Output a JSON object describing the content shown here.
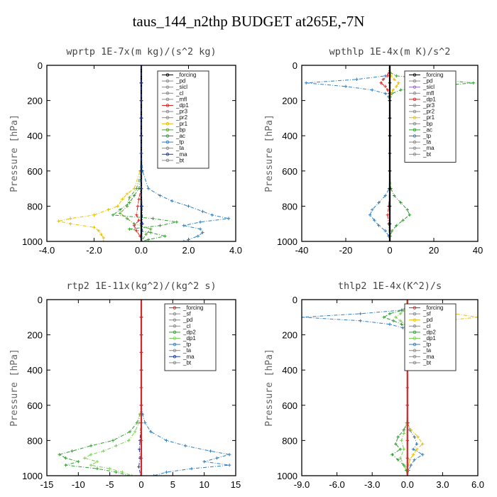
{
  "title": "taus_144_n2thp  BUDGET at265E,-7N",
  "chart_data": [
    {
      "type": "line",
      "title": "wprtp   1E-7x(m kg)/(s^2 kg)",
      "ylabel": "Pressure [hPa]",
      "xlim": [
        -4.0,
        4.0
      ],
      "ylim": [
        0,
        1000
      ],
      "y_inverted": true,
      "xticks": [
        "-4.0",
        "-2.0",
        "0.0",
        "2.0",
        "4.0"
      ],
      "yticks": [
        "0",
        "200",
        "400",
        "600",
        "800",
        "1000"
      ],
      "legend": [
        "_forcing",
        "_pd",
        "_sicl",
        "_cl",
        "_mfl",
        "_dp1",
        "_pr3",
        "_pr2",
        "_pr1",
        "_bp",
        "_ac",
        "_tp",
        "_ta",
        "_ma",
        "_bt"
      ],
      "series": [
        {
          "name": "_tp",
          "color": "#2f7fc0",
          "y": [
            0,
            100,
            200,
            300,
            400,
            500,
            600,
            700,
            740,
            770,
            800,
            830,
            850,
            870,
            890,
            910,
            930,
            950,
            970,
            990,
            1000
          ],
          "x": [
            0,
            0,
            0,
            0,
            0,
            0,
            0.05,
            0.3,
            0.8,
            1.3,
            2.0,
            2.6,
            3.0,
            3.7,
            2.5,
            1.8,
            2.5,
            2.6,
            2.4,
            2.0,
            1.8
          ]
        },
        {
          "name": "_pr1",
          "color": "#e8c000",
          "y": [
            0,
            100,
            200,
            300,
            400,
            500,
            600,
            700,
            730,
            760,
            800,
            820,
            850,
            870,
            885,
            900,
            920,
            940,
            960,
            980,
            1000
          ],
          "x": [
            0,
            0,
            0,
            0,
            0,
            0,
            -0.05,
            -0.3,
            -0.6,
            -0.8,
            -1.0,
            -1.4,
            -2.0,
            -3.0,
            -3.5,
            -3.0,
            -2.0,
            -1.8,
            -1.7,
            -1.6,
            -1.6
          ]
        },
        {
          "name": "_ac",
          "color": "#2ca02c",
          "y": [
            0,
            100,
            200,
            300,
            400,
            500,
            600,
            700,
            740,
            780,
            820,
            850,
            870,
            890,
            910,
            930,
            950,
            970,
            990,
            1000
          ],
          "x": [
            0,
            0,
            0,
            0,
            0,
            0,
            0,
            -0.1,
            -0.3,
            -0.5,
            -0.9,
            -1.2,
            0.5,
            1.5,
            0.8,
            -0.5,
            0.4,
            1.0,
            0.3,
            0.0
          ]
        },
        {
          "name": "_bp",
          "color": "#5aa02c",
          "y": [
            0,
            100,
            200,
            300,
            400,
            500,
            600,
            700,
            750,
            800,
            840,
            870,
            900,
            930,
            960,
            1000
          ],
          "x": [
            0,
            0,
            0,
            0,
            0,
            0,
            0,
            -0.2,
            -0.5,
            -0.6,
            -0.9,
            -0.6,
            -0.3,
            0.4,
            0.2,
            0.0
          ]
        },
        {
          "name": "_dp1",
          "color": "#d62728",
          "y": [
            0,
            100,
            200,
            300,
            400,
            500,
            600,
            700,
            760,
            800,
            850,
            880,
            910,
            940,
            970,
            1000
          ],
          "x": [
            0,
            0,
            0,
            0,
            0,
            0,
            0,
            -0.02,
            -0.1,
            -0.15,
            -0.2,
            -0.1,
            -0.3,
            -0.2,
            -0.05,
            0.0
          ]
        },
        {
          "name": "_forcing",
          "color": "#000000",
          "y": [
            0,
            100,
            200,
            300,
            400,
            500,
            600,
            700,
            800,
            900,
            1000
          ],
          "x": [
            0,
            0,
            0,
            0,
            0,
            0,
            0,
            0,
            0,
            0,
            0
          ]
        },
        {
          "name": "_ma",
          "color": "#1f3fa0",
          "y": [
            0,
            100,
            200,
            300,
            400,
            500,
            600,
            700,
            800,
            900,
            1000
          ],
          "x": [
            0,
            0,
            0,
            0,
            0,
            0,
            0,
            0,
            0.03,
            0.05,
            0.02
          ]
        }
      ]
    },
    {
      "type": "line",
      "title": "wpthlp   1E-4x(m K)/s^2",
      "ylabel": "Pressure [hPa]",
      "xlim": [
        -40,
        40
      ],
      "ylim": [
        0,
        1000
      ],
      "y_inverted": true,
      "xticks": [
        "-40",
        "-20",
        "0",
        "20",
        "40"
      ],
      "yticks": [
        "0",
        "200",
        "400",
        "600",
        "800",
        "1000"
      ],
      "legend": [
        "_forcing",
        "_pd",
        "_sicl",
        "_mfl",
        "_dp1",
        "_pr3",
        "_pr2",
        "_pr1",
        "_bp",
        "_ac",
        "_tp",
        "_ta",
        "_ma",
        "_bt"
      ],
      "series": [
        {
          "name": "_tp",
          "color": "#2f7fc0",
          "y": [
            0,
            40,
            60,
            80,
            100,
            120,
            140,
            160,
            180,
            200,
            300,
            400,
            600,
            700,
            740,
            780,
            820,
            850,
            880,
            910,
            940,
            970,
            1000
          ],
          "x": [
            0,
            0,
            -2,
            -15,
            -38,
            -20,
            -8,
            -2,
            -0.5,
            0,
            0,
            0,
            0,
            -0.3,
            -2,
            -5,
            -8,
            -9,
            -7,
            -5,
            -2,
            -0.5,
            0
          ]
        },
        {
          "name": "_ac",
          "color": "#2ca02c",
          "y": [
            0,
            40,
            60,
            80,
            100,
            120,
            140,
            160,
            180,
            200,
            300,
            400,
            600,
            700,
            740,
            780,
            820,
            850,
            880,
            910,
            940,
            970,
            1000
          ],
          "x": [
            0,
            0,
            3,
            20,
            38,
            18,
            5,
            1,
            0.2,
            0,
            0,
            0,
            0,
            0.5,
            2,
            5,
            8,
            9,
            6,
            3,
            1,
            0.2,
            0
          ]
        },
        {
          "name": "_pr1",
          "color": "#e8c000",
          "y": [
            0,
            60,
            80,
            100,
            120,
            140,
            160,
            200,
            1000
          ],
          "x": [
            0,
            0.5,
            2,
            4,
            3,
            1.5,
            0.5,
            0,
            0
          ]
        },
        {
          "name": "_dp1",
          "color": "#d62728",
          "y": [
            0,
            60,
            80,
            100,
            120,
            140,
            160,
            200,
            700,
            800,
            850,
            900,
            1000
          ],
          "x": [
            0,
            -1,
            -3,
            -4,
            -2,
            -1,
            -0.3,
            0,
            0,
            -0.5,
            -1,
            -0.5,
            0
          ]
        },
        {
          "name": "_sicl",
          "color": "#9467bd",
          "y": [
            0,
            100,
            200,
            300,
            400,
            500,
            600,
            700,
            800,
            900,
            1000
          ],
          "x": [
            0,
            0,
            0,
            0,
            0,
            0,
            0,
            0,
            0,
            0,
            0
          ]
        },
        {
          "name": "_forcing",
          "color": "#000000",
          "y": [
            0,
            100,
            200,
            300,
            400,
            500,
            600,
            700,
            800,
            900,
            1000
          ],
          "x": [
            0,
            0,
            0,
            0,
            0,
            0,
            0,
            0,
            0,
            0,
            0
          ]
        }
      ]
    },
    {
      "type": "line",
      "title": "rtp2   1E-11x(kg^2)/(kg^2 s)",
      "ylabel": "Pressure [hPa]",
      "xlim": [
        -15,
        15
      ],
      "ylim": [
        0,
        1000
      ],
      "y_inverted": true,
      "xticks": [
        "-15",
        "-10",
        "-5",
        "0",
        "5",
        "10",
        "15"
      ],
      "yticks": [
        "0",
        "200",
        "400",
        "600",
        "800",
        "1000"
      ],
      "legend": [
        "_forcing",
        "_sf",
        "_pd",
        "_cl",
        "_dp2",
        "_dp1",
        "_tp",
        "_ta",
        "_ma",
        "_bt"
      ],
      "series": [
        {
          "name": "_tp",
          "color": "#2f7fc0",
          "y": [
            0,
            100,
            200,
            300,
            400,
            500,
            600,
            650,
            700,
            750,
            800,
            830,
            860,
            880,
            900,
            920,
            940,
            960,
            980,
            1000
          ],
          "x": [
            0,
            0,
            0,
            0,
            0,
            0,
            0,
            0.2,
            0.6,
            1.5,
            4,
            7,
            11,
            14,
            12,
            10,
            14,
            8,
            4,
            2
          ]
        },
        {
          "name": "_dp2",
          "color": "#2ca02c",
          "y": [
            0,
            100,
            200,
            300,
            400,
            500,
            600,
            650,
            700,
            750,
            800,
            830,
            860,
            880,
            900,
            920,
            940,
            960,
            980,
            1000
          ],
          "x": [
            0,
            0,
            0,
            0,
            0,
            0,
            0,
            -0.2,
            -0.7,
            -1.8,
            -4.5,
            -8,
            -11,
            -13,
            -12,
            -10,
            -12,
            -7,
            -4,
            -2
          ]
        },
        {
          "name": "_dp1",
          "color": "#7ccf5a",
          "y": [
            0,
            100,
            200,
            300,
            400,
            500,
            600,
            700,
            750,
            800,
            830,
            860,
            880,
            900,
            920,
            940,
            960,
            980,
            1000
          ],
          "x": [
            0,
            0,
            0,
            0,
            0,
            0,
            0,
            -0.4,
            -1,
            -2,
            -4,
            -6,
            -8,
            -9,
            -7,
            -8,
            -5,
            -3,
            -1.5
          ]
        },
        {
          "name": "_ma",
          "color": "#1f3fa0",
          "y": [
            0,
            100,
            200,
            300,
            400,
            500,
            600,
            700,
            800,
            850,
            900,
            950,
            1000
          ],
          "x": [
            0,
            0,
            0,
            0,
            0,
            0,
            0,
            -0.05,
            -0.2,
            -0.3,
            -0.2,
            -0.4,
            -0.1
          ]
        },
        {
          "name": "_forcing",
          "color": "#d62728",
          "y": [
            0,
            100,
            200,
            300,
            400,
            500,
            600,
            700,
            800,
            900,
            1000
          ],
          "x": [
            0,
            0,
            0,
            0,
            0,
            0,
            0,
            0,
            0,
            0,
            0
          ]
        }
      ]
    },
    {
      "type": "line",
      "title": "thlp2   1E-4x(K^2)/s",
      "ylabel": "Pressure [hPa]",
      "xlim": [
        -9.0,
        6.0
      ],
      "ylim": [
        0,
        1000
      ],
      "y_inverted": true,
      "xticks": [
        "-9.0",
        "-6.0",
        "-3.0",
        "0.0",
        "3.0",
        "6.0"
      ],
      "yticks": [
        "0",
        "200",
        "400",
        "600",
        "800",
        "1000"
      ],
      "legend": [
        "_forcing",
        "_sf",
        "_pd",
        "_cl",
        "_dp2",
        "_dp1",
        "_tp",
        "_ta",
        "_ma",
        "_bt"
      ],
      "series": [
        {
          "name": "_tp",
          "color": "#2f7fc0",
          "y": [
            0,
            40,
            60,
            80,
            100,
            120,
            140,
            160,
            180,
            200,
            300,
            400,
            600,
            700,
            740,
            780,
            820,
            850,
            880,
            910,
            940,
            970,
            1000
          ],
          "x": [
            0,
            0,
            -0.5,
            -4,
            -9,
            -4,
            -1.5,
            -0.4,
            -0.1,
            0,
            0,
            0,
            0,
            0.05,
            0.2,
            0.6,
            0.8,
            0.5,
            1.3,
            0.6,
            0.3,
            0.1,
            0
          ]
        },
        {
          "name": "_pd",
          "color": "#e8c000",
          "y": [
            0,
            40,
            60,
            80,
            100,
            120,
            140,
            160,
            180,
            200,
            300,
            400,
            600,
            700,
            740,
            780,
            820,
            850,
            880,
            910,
            940,
            970,
            1000
          ],
          "x": [
            0,
            0,
            1,
            4,
            6,
            3,
            1,
            0.3,
            0.1,
            0,
            0,
            0,
            0,
            0,
            0.3,
            0.9,
            1.3,
            0.8,
            0.5,
            0.2,
            0.1,
            0,
            0
          ]
        },
        {
          "name": "_dp2",
          "color": "#2ca02c",
          "y": [
            0,
            40,
            60,
            80,
            100,
            120,
            140,
            160,
            200,
            600,
            700,
            740,
            780,
            820,
            850,
            880,
            910,
            940,
            970,
            1000
          ],
          "x": [
            0,
            -0.1,
            -0.4,
            -1.5,
            -2,
            -1.2,
            -0.5,
            -0.1,
            0,
            0,
            -0.05,
            -0.3,
            -0.8,
            -1.0,
            -0.6,
            -1.3,
            -0.8,
            -0.3,
            -0.1,
            0
          ]
        },
        {
          "name": "_dp1",
          "color": "#7ccf5a",
          "y": [
            0,
            60,
            80,
            100,
            120,
            140,
            200,
            600,
            700,
            760,
            800,
            850,
            900,
            950,
            1000
          ],
          "x": [
            0,
            -0.2,
            -0.6,
            -1,
            -0.6,
            -0.2,
            0,
            0,
            -0.05,
            -0.3,
            -0.5,
            -0.3,
            -0.6,
            -0.2,
            0
          ]
        },
        {
          "name": "_forcing",
          "color": "#d62728",
          "y": [
            0,
            100,
            200,
            300,
            400,
            500,
            600,
            700,
            800,
            900,
            1000
          ],
          "x": [
            0,
            0,
            0,
            0,
            0,
            0,
            0,
            0,
            0,
            0,
            0
          ]
        }
      ]
    }
  ]
}
